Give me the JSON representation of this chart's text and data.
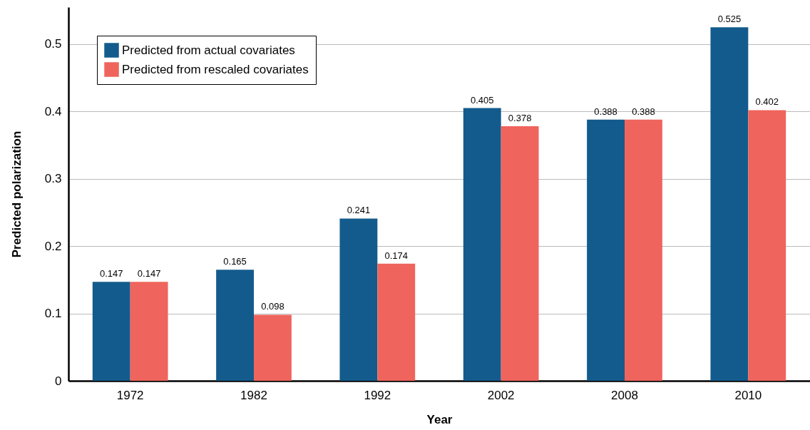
{
  "chart_data": {
    "type": "bar",
    "xlabel": "Year",
    "ylabel": "Predicted polarization",
    "categories": [
      "1972",
      "1982",
      "1992",
      "2002",
      "2008",
      "2010"
    ],
    "series": [
      {
        "name": "Predicted from actual covariates",
        "color": "#135b8c",
        "values": [
          0.147,
          0.165,
          0.241,
          0.405,
          0.388,
          0.525
        ]
      },
      {
        "name": "Predicted from rescaled covariates",
        "color": "#ef645c",
        "values": [
          0.147,
          0.098,
          0.174,
          0.378,
          0.388,
          0.402
        ]
      }
    ],
    "ylim": [
      0,
      0.555
    ],
    "yticks": [
      0,
      0.1,
      0.2,
      0.3,
      0.4,
      0.5
    ],
    "grid": "y",
    "legend": "top left",
    "data_labels": true
  }
}
